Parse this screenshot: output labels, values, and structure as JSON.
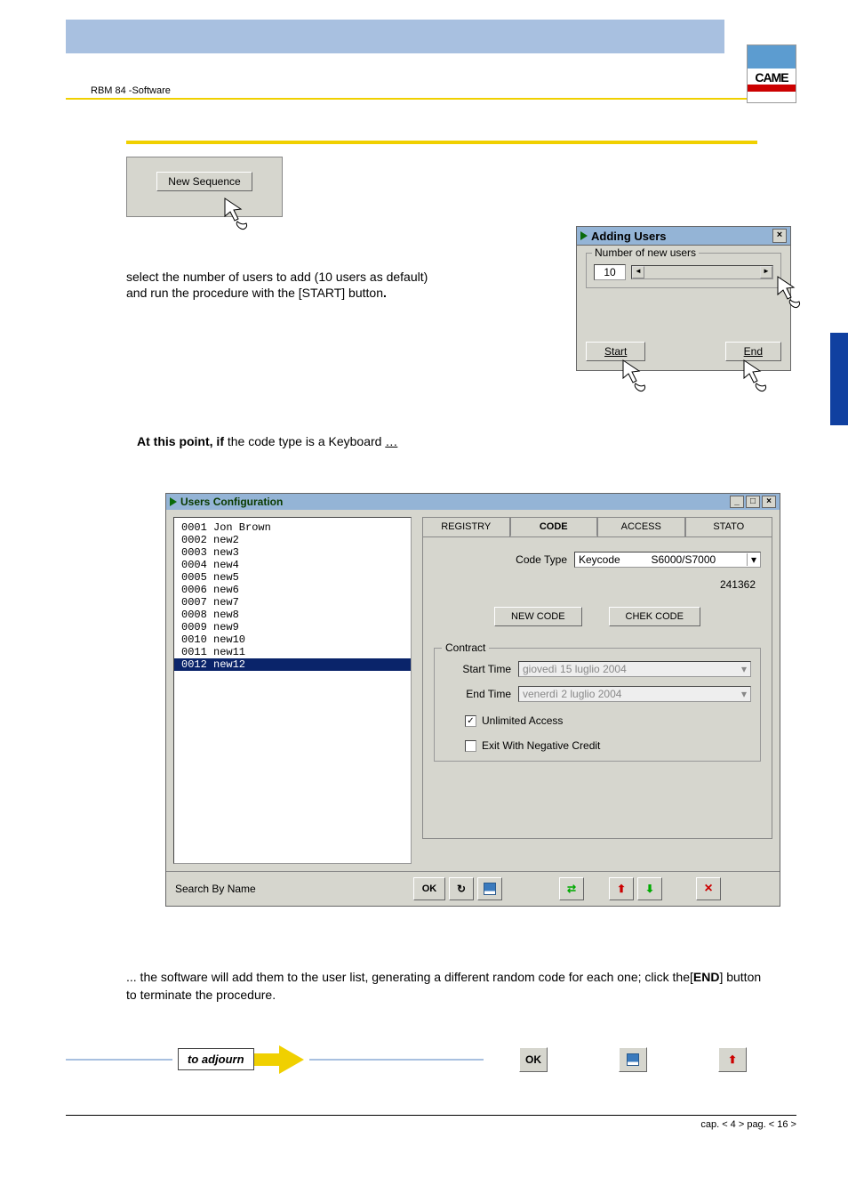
{
  "header": {
    "label": "RBM 84 -Software",
    "logo_text": "CAME"
  },
  "new_sequence": {
    "button": "New Sequence"
  },
  "instruction": {
    "line1": " select the number of users to add (10 users as default)",
    "line2": "and run the procedure with the  [START] button",
    "dot": "."
  },
  "adding_users": {
    "title": "Adding Users",
    "group_label": "Number of new users",
    "value": "10",
    "start_btn": "Start",
    "end_btn": "End"
  },
  "mid_text": {
    "bold": "At this point, if",
    "rest": " the code type is a Keyboard ",
    "ellipsis": "…"
  },
  "users_config": {
    "title": "Users Configuration",
    "list": [
      "0001 Jon Brown",
      "0002 new2",
      "0003 new3",
      "0004 new4",
      "0005 new5",
      "0006 new6",
      "0007 new7",
      "0008 new8",
      "0009 new9",
      "0010 new10",
      "0011 new11",
      "0012 new12"
    ],
    "selected_index": 11,
    "tabs": {
      "registry": "REGISTRY",
      "code": "CODE",
      "access": "ACCESS",
      "stato": "STATO"
    },
    "code_type_label": "Code Type",
    "code_type_value": "Keycode",
    "code_type_model": "S6000/S7000",
    "code_value": "241362",
    "new_code_btn": "NEW CODE",
    "chek_code_btn": "CHEK CODE",
    "contract_label": "Contract",
    "start_time_label": "Start Time",
    "start_time_value": "giovedì   15     luglio     2004",
    "end_time_label": "End Time",
    "end_time_value": "venerdì    2     luglio     2004",
    "unlimited_label": "Unlimited Access",
    "unlimited_checked": true,
    "exit_neg_label": "Exit With Negative Credit",
    "exit_neg_checked": false,
    "search_label": "Search By Name",
    "ok_btn": "OK"
  },
  "bottom_text": "... the software will add them to the user list, generating a different random code for each one; click the[",
  "bottom_text_bold": "END",
  "bottom_text_after": "] button to terminate the procedure.",
  "adjourn": {
    "label": "to adjourn",
    "ok": "OK"
  },
  "footer": {
    "cap": "cap. < 4 > pag. < 16 >"
  }
}
